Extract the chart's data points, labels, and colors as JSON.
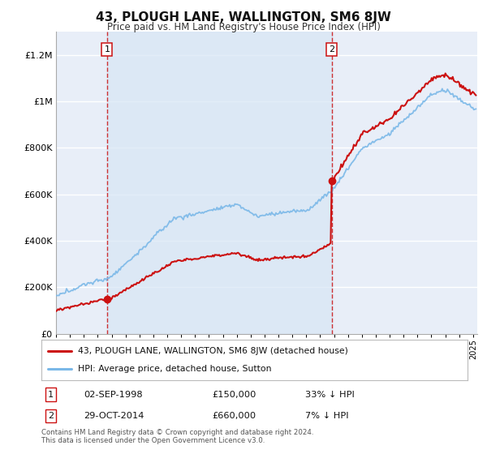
{
  "title": "43, PLOUGH LANE, WALLINGTON, SM6 8JW",
  "subtitle": "Price paid vs. HM Land Registry's House Price Index (HPI)",
  "ylim": [
    0,
    1300000
  ],
  "xlim_start": 1995.0,
  "xlim_end": 2025.3,
  "yticks": [
    0,
    200000,
    400000,
    600000,
    800000,
    1000000,
    1200000
  ],
  "ytick_labels": [
    "£0",
    "£200K",
    "£400K",
    "£600K",
    "£800K",
    "£1M",
    "£1.2M"
  ],
  "background_color": "#ffffff",
  "plot_bg_color": "#e8eef8",
  "grid_color": "#ffffff",
  "hpi_color": "#7ab8e8",
  "price_color": "#cc1111",
  "vline_color": "#cc1111",
  "vline1_x": 1998.67,
  "vline2_x": 2014.83,
  "sale1_x": 1998.67,
  "sale1_y": 150000,
  "sale2_x": 2014.83,
  "sale2_y": 660000,
  "legend_label_price": "43, PLOUGH LANE, WALLINGTON, SM6 8JW (detached house)",
  "legend_label_hpi": "HPI: Average price, detached house, Sutton",
  "annotation1_num": "1",
  "annotation2_num": "2",
  "table_row1": [
    "1",
    "02-SEP-1998",
    "£150,000",
    "33% ↓ HPI"
  ],
  "table_row2": [
    "2",
    "29-OCT-2014",
    "£660,000",
    "7% ↓ HPI"
  ],
  "footnote1": "Contains HM Land Registry data © Crown copyright and database right 2024.",
  "footnote2": "This data is licensed under the Open Government Licence v3.0."
}
